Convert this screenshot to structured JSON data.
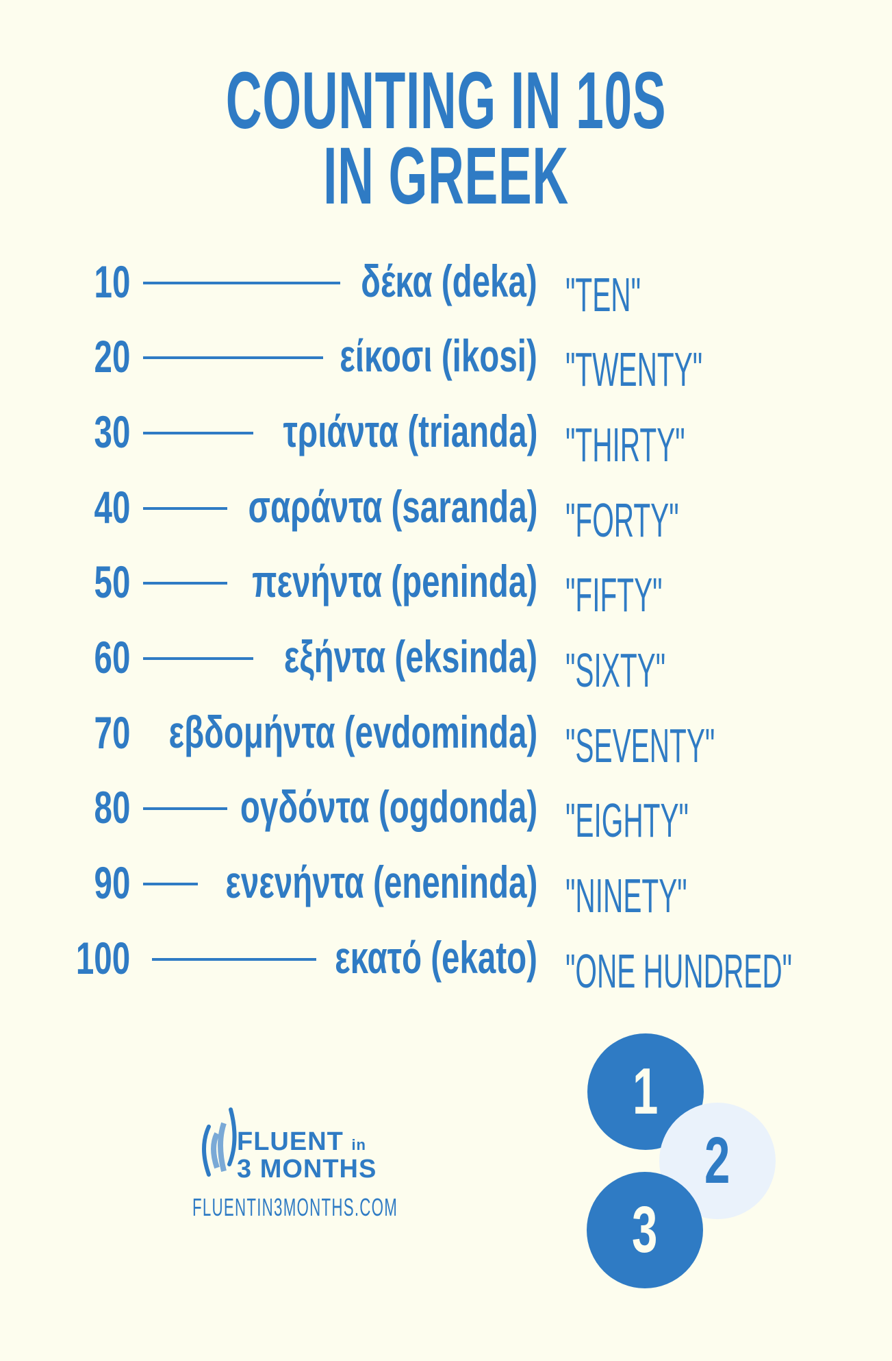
{
  "title": {
    "line1": "COUNTING IN 10S",
    "line2": "IN GREEK"
  },
  "rows": [
    {
      "number": "10",
      "greek": "δέκα (deka)",
      "english": "\"TEN\""
    },
    {
      "number": "20",
      "greek": "είκοσι (ikosi)",
      "english": "\"TWENTY\""
    },
    {
      "number": "30",
      "greek": "τριάντα (trianda)",
      "english": "\"THIRTY\""
    },
    {
      "number": "40",
      "greek": "σαράντα (saranda)",
      "english": "\"FORTY\""
    },
    {
      "number": "50",
      "greek": "πενήντα (peninda)",
      "english": "\"FIFTY\""
    },
    {
      "number": "60",
      "greek": "εξήντα (eksinda)",
      "english": "\"SIXTY\""
    },
    {
      "number": "70",
      "greek": "εβδομήντα (evdominda)",
      "english": "\"SEVENTY\""
    },
    {
      "number": "80",
      "greek": "ογδόντα (ogdonda)",
      "english": "\"EIGHTY\""
    },
    {
      "number": "90",
      "greek": "ενενήντα (eneninda)",
      "english": "\"NINETY\""
    },
    {
      "number": "100",
      "greek": "εκατό (ekato)",
      "english": "\"ONE HUNDRED\""
    }
  ],
  "logo": {
    "line1": "FLUENT",
    "line1_small": "in",
    "line2": "3 MONTHS",
    "icon": "sound-waves-icon"
  },
  "url": "FLUENTIN3MONTHS.COM",
  "circles": [
    "1",
    "2",
    "3"
  ],
  "colors": {
    "background": "#fdfdee",
    "primary": "#2f7bc4",
    "light": "#eaf2fb"
  }
}
